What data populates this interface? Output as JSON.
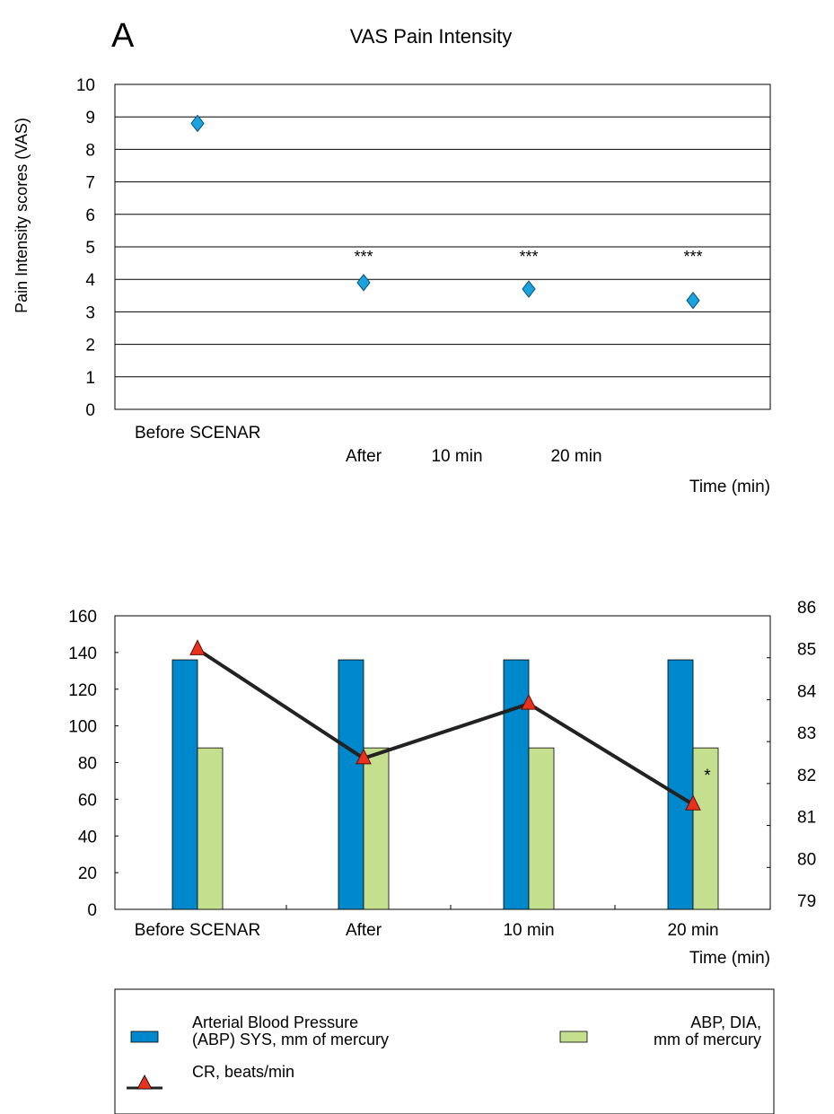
{
  "colors": {
    "diamond": "#1aa3df",
    "sys_bar": "#0088cc",
    "dia_bar": "#c4e08e",
    "cr_marker": "#e8321e",
    "cr_line": "#222222"
  },
  "chart_data": [
    {
      "type": "scatter",
      "panel_label": "A",
      "title": "VAS Pain Intensity",
      "xlabel": "Time (min)",
      "ylabel": "Pain Intensity scores (VAS)",
      "ylim": [
        0,
        10
      ],
      "yticks": [
        0,
        1,
        2,
        3,
        4,
        5,
        6,
        7,
        8,
        9,
        10
      ],
      "grid": true,
      "categories": [
        "Before SCENAR",
        "After",
        "10 min",
        "20 min"
      ],
      "values": [
        8.8,
        3.9,
        3.7,
        3.35
      ],
      "annotations": [
        "",
        "***",
        "***",
        "***"
      ],
      "marker": "diamond"
    },
    {
      "type": "bar",
      "xlabel": "Time (min)",
      "categories": [
        "Before SCENAR",
        "After",
        "10 min",
        "20 min"
      ],
      "ylim": [
        0,
        160
      ],
      "yticks": [
        0,
        20,
        40,
        60,
        80,
        100,
        120,
        140,
        160
      ],
      "y2lim": [
        79,
        86
      ],
      "y2ticks": [
        79,
        80,
        81,
        82,
        83,
        84,
        85,
        86
      ],
      "grid": false,
      "series": [
        {
          "name": "Arterial Blood Pressure (ABP) SYS, mm of mercury",
          "legend_lines": [
            "Arterial Blood Pressure",
            "(ABP) SYS, mm of mercury"
          ],
          "type": "bar",
          "axis": "left",
          "values": [
            136,
            136,
            136,
            136
          ]
        },
        {
          "name": "ABP, DIA, mm of mercury",
          "legend_lines": [
            "ABP, DIA,",
            "mm of mercury"
          ],
          "type": "bar",
          "axis": "left",
          "values": [
            88,
            88,
            88,
            88
          ]
        },
        {
          "name": "CR, beats/min",
          "legend_lines": [
            "CR, beats/min"
          ],
          "type": "line",
          "axis": "right",
          "values": [
            85.2,
            82.6,
            83.9,
            81.5
          ]
        }
      ],
      "annotations": [
        "",
        "",
        "",
        "*"
      ],
      "legend_position": "bottom"
    }
  ]
}
